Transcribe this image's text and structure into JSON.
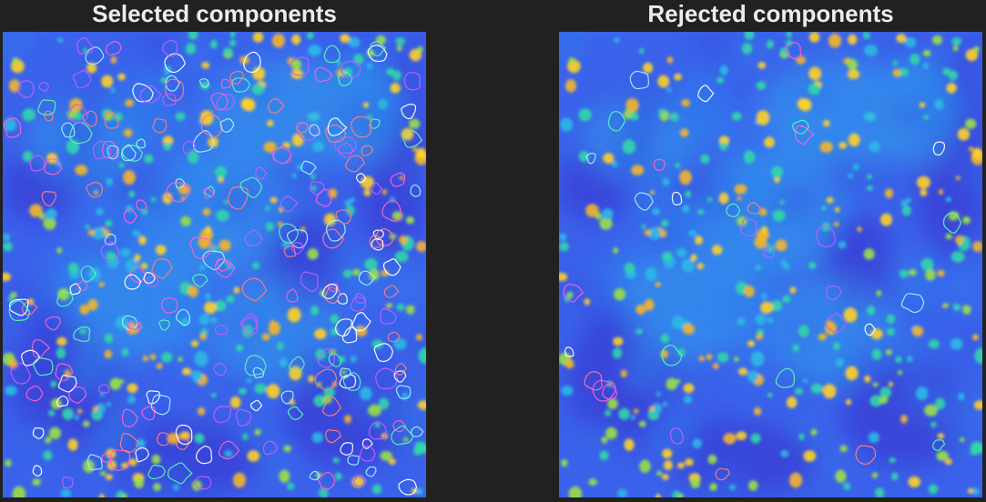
{
  "panels": [
    {
      "title": "Selected components",
      "kind": "selected"
    },
    {
      "title": "Rejected components",
      "kind": "rejected"
    }
  ],
  "colors": {
    "background": "#212121",
    "title_text": "#ececec",
    "contour_palette": [
      "#ff5fd2",
      "#ff7b7b",
      "#5cf5b0",
      "#ffffff",
      "#c45cff",
      "#9ff0ff"
    ]
  }
}
